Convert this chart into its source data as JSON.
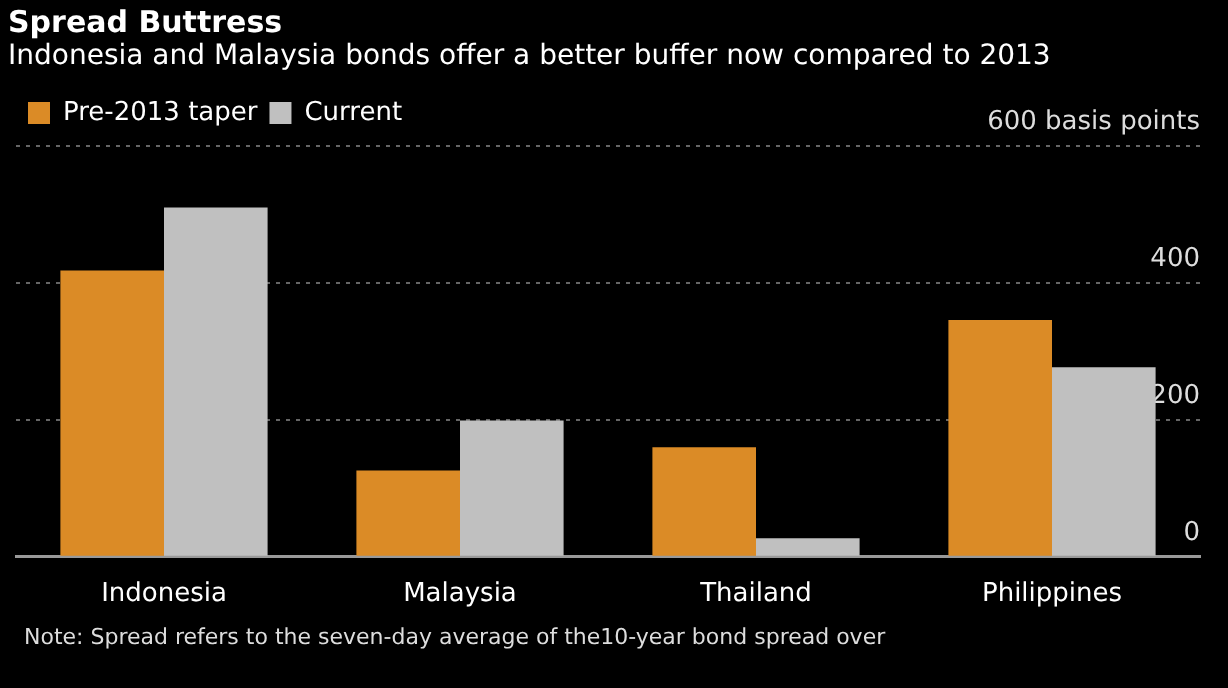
{
  "chart_data": {
    "type": "bar",
    "title": "Spread Buttress",
    "subtitle": "Indonesia and Malaysia bonds offer a better buffer now compared to 2013",
    "categories": [
      "Indonesia",
      "Malaysia",
      "Thailand",
      "Philippines"
    ],
    "series": [
      {
        "name": "Pre-2013 taper",
        "color": "#db8b26",
        "values": [
          418,
          126,
          160,
          346
        ]
      },
      {
        "name": "Current",
        "color": "#c0c0c0",
        "values": [
          510,
          199,
          27,
          277
        ]
      }
    ],
    "ylim": [
      0,
      600
    ],
    "yticks": [
      0,
      200,
      400,
      {
        "value": 600,
        "label": "600 basis points"
      }
    ],
    "grid": "y",
    "legend": "top left",
    "annotations": [
      "Note: Spread refers to the seven-day average of the10-year bond spread over"
    ]
  }
}
